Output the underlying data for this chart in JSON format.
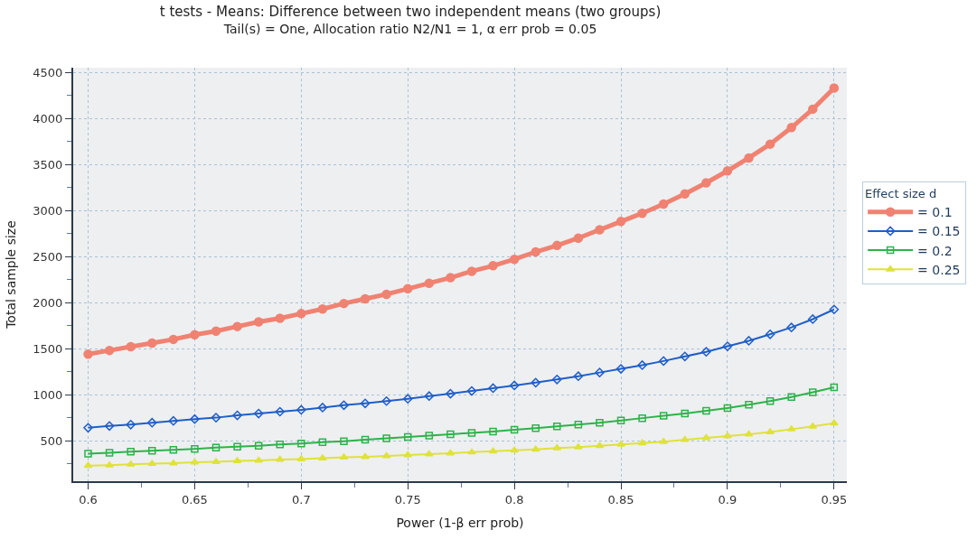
{
  "chart_data": {
    "type": "line",
    "title": "t tests - Means: Difference between two independent means (two groups)",
    "subtitle": "Tail(s) = One, Allocation ratio N2/N1 = 1, α err prob = 0.05",
    "xlabel": "Power (1-β err prob)",
    "ylabel": "Total sample size",
    "legend_title": "Effect size d",
    "x": [
      0.6,
      0.61,
      0.62,
      0.63,
      0.64,
      0.65,
      0.66,
      0.67,
      0.68,
      0.69,
      0.7,
      0.71,
      0.72,
      0.73,
      0.74,
      0.75,
      0.76,
      0.77,
      0.78,
      0.79,
      0.8,
      0.81,
      0.82,
      0.83,
      0.84,
      0.85,
      0.86,
      0.87,
      0.88,
      0.89,
      0.9,
      0.91,
      0.92,
      0.93,
      0.94,
      0.95
    ],
    "series": [
      {
        "name": "= 0.1",
        "color": "#f08272",
        "marker": "circle",
        "values": [
          1440,
          1480,
          1520,
          1560,
          1600,
          1650,
          1690,
          1740,
          1790,
          1830,
          1880,
          1930,
          1990,
          2040,
          2090,
          2150,
          2210,
          2270,
          2340,
          2400,
          2470,
          2550,
          2620,
          2700,
          2790,
          2880,
          2970,
          3070,
          3180,
          3300,
          3430,
          3570,
          3720,
          3900,
          4100,
          4330
        ]
      },
      {
        "name": "= 0.15",
        "color": "#1f5fc8",
        "marker": "diamond",
        "values": [
          640,
          660,
          675,
          695,
          715,
          735,
          750,
          775,
          795,
          815,
          835,
          860,
          885,
          905,
          930,
          955,
          985,
          1010,
          1040,
          1070,
          1100,
          1130,
          1165,
          1200,
          1240,
          1280,
          1320,
          1365,
          1415,
          1465,
          1525,
          1585,
          1655,
          1730,
          1820,
          1925
        ]
      },
      {
        "name": "= 0.2",
        "color": "#2db34a",
        "marker": "square",
        "values": [
          360,
          370,
          380,
          390,
          400,
          410,
          425,
          435,
          445,
          460,
          470,
          485,
          495,
          510,
          525,
          540,
          555,
          570,
          585,
          600,
          620,
          635,
          655,
          675,
          695,
          720,
          745,
          770,
          795,
          825,
          855,
          890,
          930,
          975,
          1025,
          1080
        ]
      },
      {
        "name": "= 0.25",
        "color": "#dfe23a",
        "marker": "triangle",
        "values": [
          230,
          235,
          245,
          250,
          255,
          265,
          270,
          280,
          285,
          295,
          300,
          310,
          320,
          325,
          335,
          345,
          355,
          365,
          375,
          385,
          395,
          405,
          420,
          430,
          445,
          460,
          475,
          490,
          510,
          530,
          550,
          570,
          595,
          625,
          655,
          690
        ]
      }
    ],
    "xlim": [
      0.593,
      0.956
    ],
    "xticks": [
      0.6,
      {
        "value": 0.625,
        "label": null
      },
      0.65,
      {
        "value": 0.675,
        "label": null
      },
      0.7,
      {
        "value": 0.725,
        "label": null
      },
      0.75,
      {
        "value": 0.775,
        "label": null
      },
      0.8,
      {
        "value": 0.825,
        "label": null
      },
      0.85,
      {
        "value": 0.875,
        "label": null
      },
      0.9,
      {
        "value": 0.925,
        "label": null
      },
      0.95
    ],
    "ylim": [
      60,
      4550
    ],
    "yticks": [
      {
        "value": 250,
        "label": null
      },
      500,
      {
        "value": 750,
        "label": null
      },
      1000,
      {
        "value": 1250,
        "label": null
      },
      1500,
      {
        "value": 1750,
        "label": null
      },
      2000,
      {
        "value": 2250,
        "label": null
      },
      2500,
      {
        "value": 2750,
        "label": null
      },
      3000,
      {
        "value": 3250,
        "label": null
      },
      3500,
      {
        "value": 3750,
        "label": null
      },
      4000,
      {
        "value": 4250,
        "label": null
      },
      4500
    ],
    "grid": true,
    "legend": "right",
    "line_style": "solid"
  }
}
